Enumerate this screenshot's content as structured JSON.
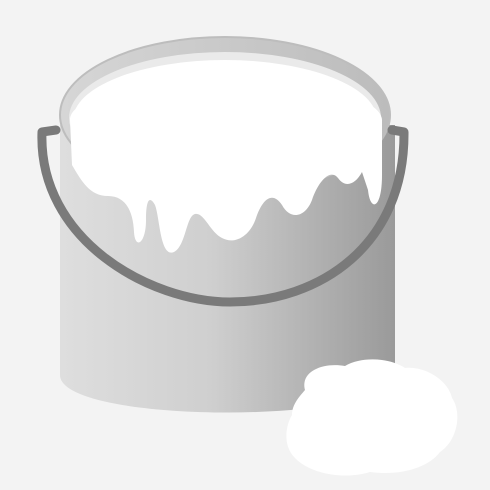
{
  "image": {
    "subject": "paint-bucket-icon",
    "colors": {
      "background": "#f3f3f3",
      "bucket_light": "#e9e9e9",
      "bucket_dark": "#9a9a9a",
      "rim": "#c8c8c8",
      "handle": "#7a7a7a",
      "paint": "#ffffff"
    }
  }
}
